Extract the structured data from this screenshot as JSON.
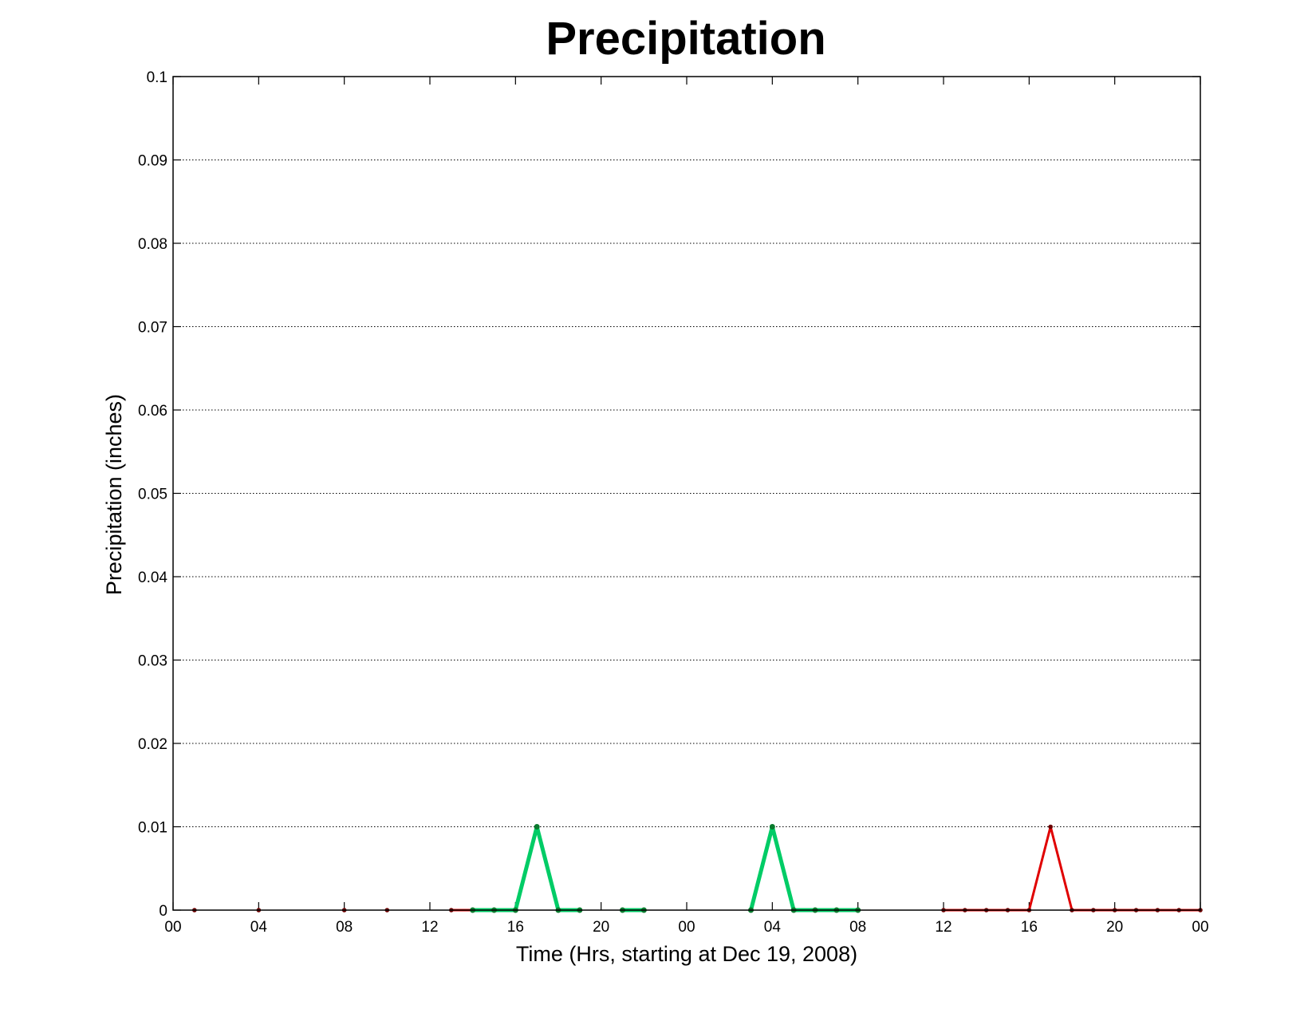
{
  "chart_data": {
    "type": "line",
    "title": "Precipitation",
    "xlabel": "Time (Hrs, starting at Dec 19, 2008)",
    "ylabel": "Precipitation (inches)",
    "xlim": [
      0,
      48
    ],
    "ylim": [
      0,
      0.1
    ],
    "x_ticks": [
      0,
      4,
      8,
      12,
      16,
      20,
      24,
      28,
      32,
      36,
      40,
      44,
      48
    ],
    "x_tick_labels": [
      "00",
      "04",
      "08",
      "12",
      "16",
      "20",
      "00",
      "04",
      "08",
      "12",
      "16",
      "20",
      "00"
    ],
    "y_ticks": [
      0,
      0.01,
      0.02,
      0.03,
      0.04,
      0.05,
      0.06,
      0.07,
      0.08,
      0.09,
      0.1
    ],
    "y_tick_labels": [
      "0",
      "0.01",
      "0.02",
      "0.03",
      "0.04",
      "0.05",
      "0.06",
      "0.07",
      "0.08",
      "0.09",
      "0.1"
    ],
    "grid": true,
    "series": [
      {
        "color": "#e00000",
        "line": false,
        "points": [
          [
            1,
            0
          ],
          [
            4,
            0
          ],
          [
            8,
            0
          ],
          [
            10,
            0
          ]
        ]
      },
      {
        "color": "#e00000",
        "line": true,
        "points": [
          [
            13,
            0
          ],
          [
            14,
            0
          ]
        ]
      },
      {
        "color": "#00cc66",
        "line": true,
        "points": [
          [
            14,
            0
          ],
          [
            15,
            0
          ],
          [
            16,
            0
          ],
          [
            17,
            0.01
          ],
          [
            18,
            0
          ],
          [
            19,
            0
          ]
        ]
      },
      {
        "color": "#00cc66",
        "line": true,
        "points": [
          [
            21,
            0
          ],
          [
            22,
            0
          ]
        ]
      },
      {
        "color": "#00cc66",
        "line": true,
        "points": [
          [
            27,
            0
          ],
          [
            28,
            0.01
          ],
          [
            29,
            0
          ],
          [
            30,
            0
          ],
          [
            31,
            0
          ],
          [
            32,
            0
          ]
        ]
      },
      {
        "color": "#e00000",
        "line": true,
        "points": [
          [
            36,
            0
          ],
          [
            37,
            0
          ],
          [
            38,
            0
          ],
          [
            39,
            0
          ],
          [
            40,
            0
          ],
          [
            41,
            0.01
          ],
          [
            42,
            0
          ],
          [
            43,
            0
          ],
          [
            44,
            0
          ],
          [
            45,
            0
          ],
          [
            46,
            0
          ],
          [
            47,
            0
          ],
          [
            48,
            0
          ]
        ]
      }
    ]
  }
}
